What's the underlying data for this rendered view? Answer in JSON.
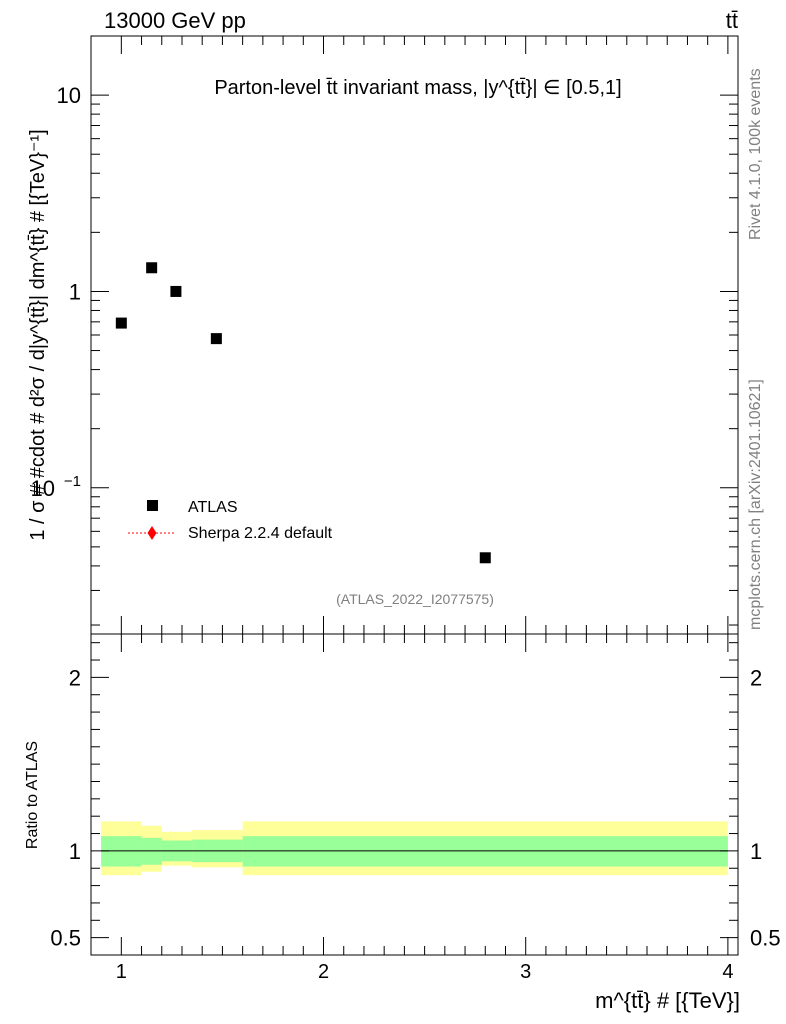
{
  "header": {
    "left": "13000 GeV pp",
    "right": "tt̄"
  },
  "side_labels": {
    "rivet": "Rivet 4.1.0,  100k events",
    "mcplots": "mcplots.cern.ch [arXiv:2401.10621]"
  },
  "chart_data": [
    {
      "type": "scatter",
      "panel": "main",
      "title": "Parton-level t̄t invariant mass, |y^{tt̄}| ∈ [0.5,1]",
      "xlabel": "m^{tt̄} # [{TeV}]",
      "ylabel": "1 / σ # #cdot # d²σ / d|y^{tt̄}| dm^{tt̄} # [{TeV}⁻¹]",
      "xscale": "linear",
      "yscale": "log",
      "xlim": [
        0.85,
        4.05
      ],
      "ylim": [
        0.018,
        20
      ],
      "x_ticks": [
        "1",
        "2",
        "3",
        "4"
      ],
      "y_ticks": [
        "10",
        "1",
        "10^-1"
      ],
      "series": [
        {
          "name": "ATLAS",
          "marker": "square",
          "color": "#000000",
          "x": [
            1.0,
            1.15,
            1.27,
            1.47,
            2.8
          ],
          "y": [
            0.69,
            1.32,
            1.0,
            0.575,
            0.044
          ]
        },
        {
          "name": "Sherpa 2.2.4 default",
          "marker": "diamond",
          "color": "#ff0000",
          "x": [],
          "y": []
        }
      ],
      "legend": [
        "ATLAS",
        "Sherpa 2.2.4 default"
      ],
      "legend_position": "bottom-left",
      "annotation": "(ATLAS_2022_I2077575)"
    },
    {
      "type": "area",
      "panel": "ratio",
      "ylabel": "Ratio to ATLAS",
      "xlim": [
        0.85,
        4.05
      ],
      "ylim": [
        0.4,
        2.25
      ],
      "y_ticks": [
        "0.5",
        "1",
        "2"
      ],
      "reference_line": 1,
      "bins": [
        {
          "x_low": 0.9,
          "x_high": 1.1,
          "inner_low": 0.91,
          "inner_high": 1.085,
          "outer_low": 0.86,
          "outer_high": 1.17
        },
        {
          "x_low": 1.1,
          "x_high": 1.2,
          "inner_low": 0.92,
          "inner_high": 1.075,
          "outer_low": 0.88,
          "outer_high": 1.145
        },
        {
          "x_low": 1.2,
          "x_high": 1.35,
          "inner_low": 0.94,
          "inner_high": 1.06,
          "outer_low": 0.915,
          "outer_high": 1.11
        },
        {
          "x_low": 1.35,
          "x_high": 1.6,
          "inner_low": 0.935,
          "inner_high": 1.065,
          "outer_low": 0.905,
          "outer_high": 1.12
        },
        {
          "x_low": 1.6,
          "x_high": 4.0,
          "inner_low": 0.91,
          "inner_high": 1.085,
          "outer_low": 0.86,
          "outer_high": 1.17
        }
      ],
      "colors": {
        "inner": "#99ff99",
        "outer": "#ffff99"
      }
    }
  ]
}
